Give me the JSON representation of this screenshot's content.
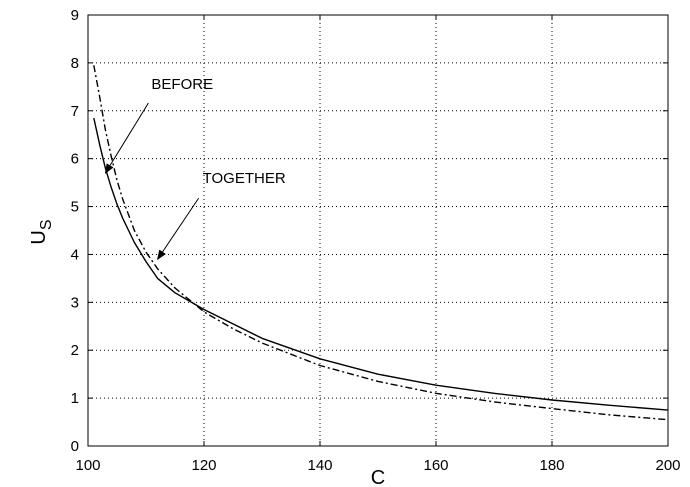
{
  "chart_data": {
    "type": "line",
    "title": "",
    "xlabel": "C",
    "ylabel_main": "U",
    "ylabel_sub": "S",
    "xlim": [
      100,
      200
    ],
    "ylim": [
      0,
      9
    ],
    "xticks": [
      100,
      120,
      140,
      160,
      180,
      200
    ],
    "yticks": [
      0,
      1,
      2,
      3,
      4,
      5,
      6,
      7,
      8,
      9
    ],
    "grid": true,
    "series": [
      {
        "style": "solid",
        "x": [
          101,
          102,
          103,
          104,
          105,
          106,
          108,
          110,
          112,
          115,
          120,
          125,
          130,
          140,
          150,
          160,
          170,
          180,
          190,
          200
        ],
        "y": [
          6.85,
          6.3,
          5.8,
          5.4,
          5.05,
          4.75,
          4.25,
          3.85,
          3.5,
          3.2,
          2.85,
          2.55,
          2.25,
          1.82,
          1.5,
          1.27,
          1.1,
          0.96,
          0.85,
          0.75
        ]
      },
      {
        "style": "dashdot",
        "x": [
          101,
          102,
          103,
          104,
          105,
          106,
          108,
          110,
          112,
          115,
          120,
          125,
          130,
          140,
          150,
          160,
          170,
          180,
          190,
          200
        ],
        "y": [
          7.95,
          7.3,
          6.6,
          6.05,
          5.55,
          5.15,
          4.5,
          4.05,
          3.7,
          3.3,
          2.8,
          2.45,
          2.15,
          1.68,
          1.35,
          1.1,
          0.92,
          0.78,
          0.65,
          0.55
        ]
      }
    ],
    "annotations": [
      {
        "text": "BEFORE",
        "target_x": 103,
        "target_y": 5.7
      },
      {
        "text": "TOGETHER",
        "target_x": 112,
        "target_y": 3.9
      }
    ]
  }
}
